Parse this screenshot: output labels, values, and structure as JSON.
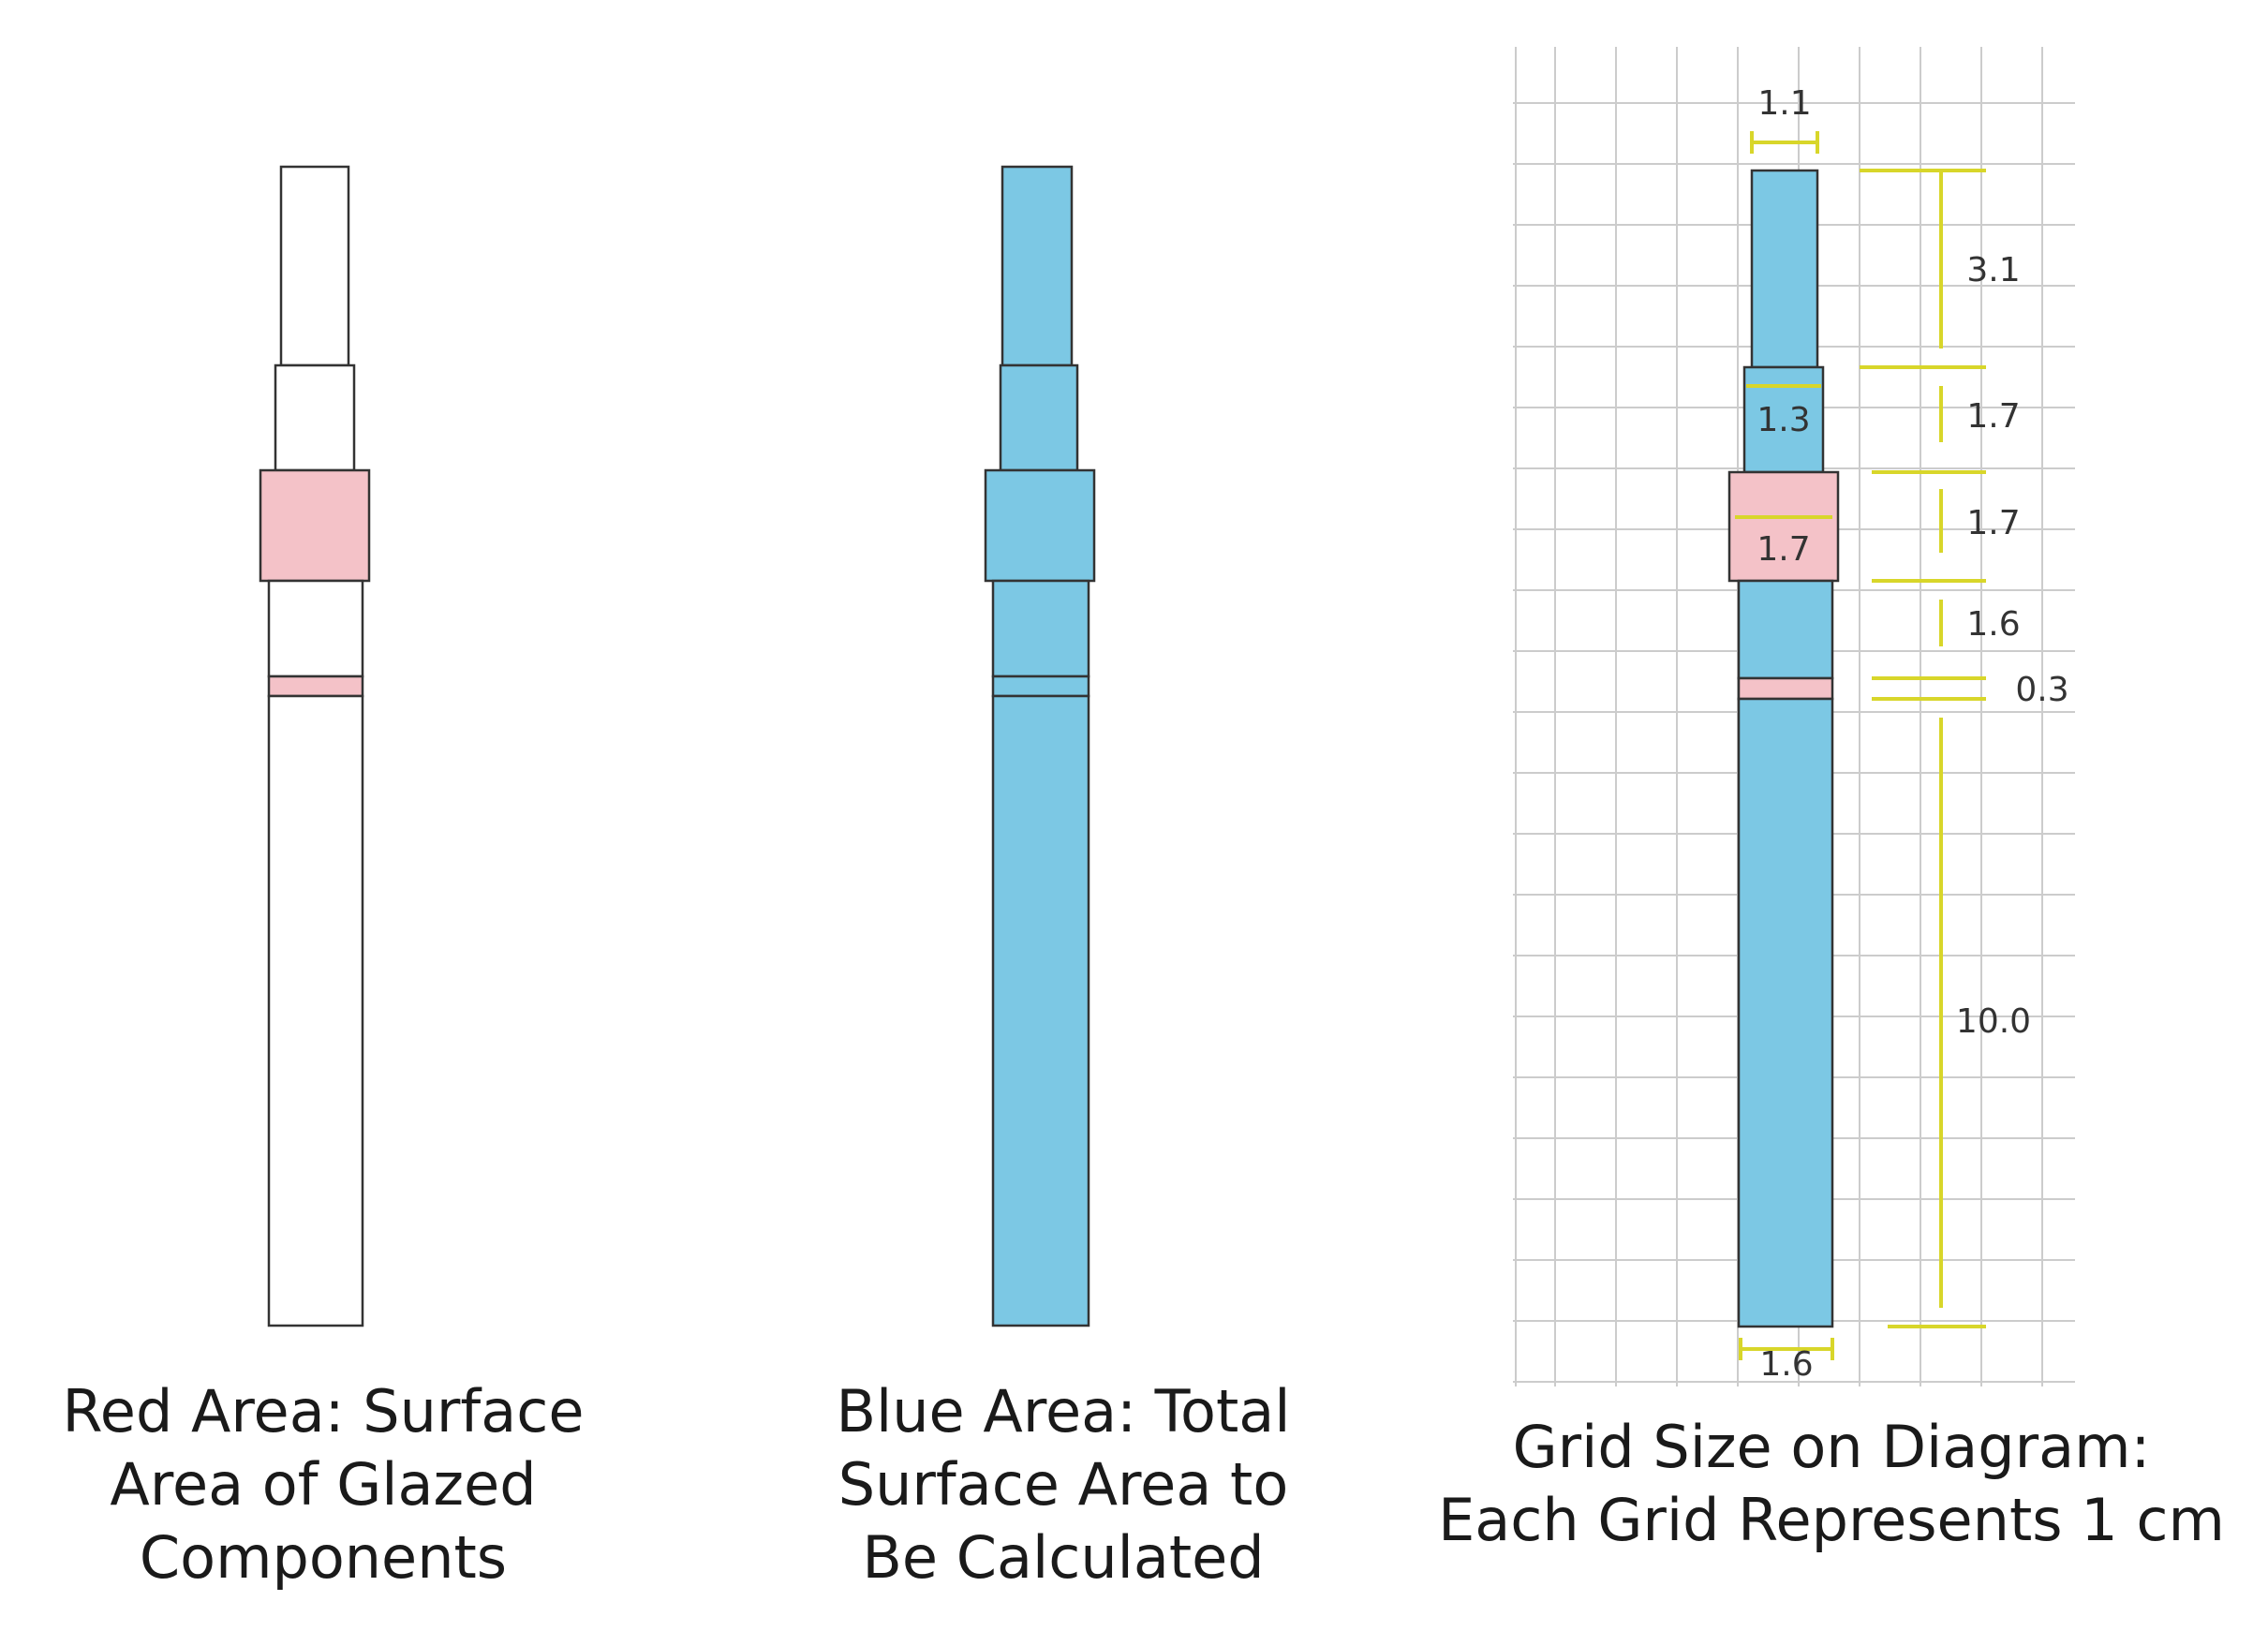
{
  "captions": {
    "left": [
      "Red Area: Surface",
      "Area of Glazed",
      "Components"
    ],
    "middle": [
      "Blue Area: Total",
      "Surface Area to",
      "Be Calculated"
    ],
    "right": [
      "Grid Size on Diagram:",
      "Each Grid Represents 1 cm"
    ]
  },
  "dimensions": {
    "top_width": "1.1",
    "width_section_2": "1.3",
    "width_section_3": "1.7",
    "bottom_width": "1.6",
    "height_top": "3.1",
    "height_2": "1.7",
    "height_3": "1.7",
    "height_4": "1.6",
    "height_band": "0.3",
    "height_bottom": "10.0"
  },
  "colors": {
    "glazed_red": "#f4c2c8",
    "total_blue": "#7cc8e4",
    "outline": "#333333",
    "dimension_yellow": "#d8d62a",
    "grid": "#cccccc"
  }
}
